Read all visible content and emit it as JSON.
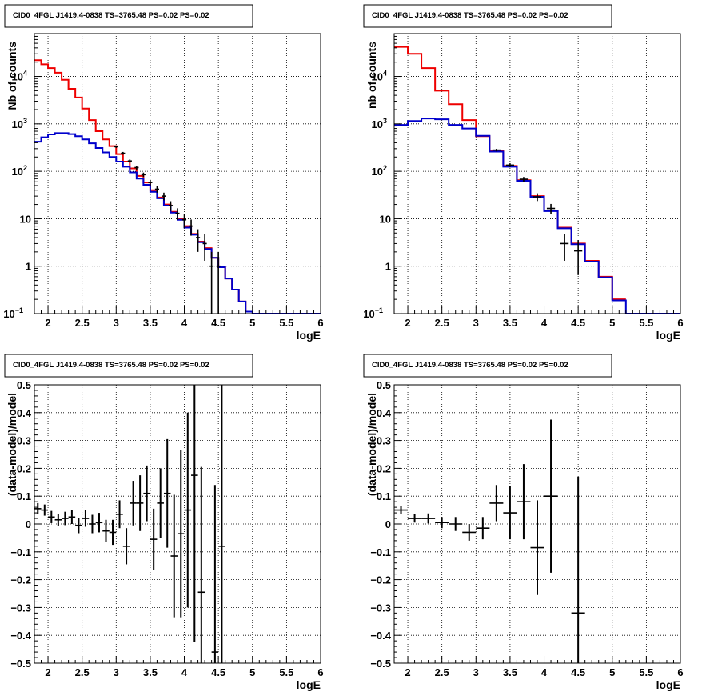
{
  "colors": {
    "model_total": "#ee0000",
    "model_source": "#0000cc",
    "data": "#000000",
    "grid": "#000000"
  },
  "chart_data": [
    {
      "type": "line",
      "title": "CID0_4FGL J1419.4-0838 TS=3765.48 PS=0.02 PS=0.02",
      "xlabel": "logE",
      "ylabel": "Nb of counts",
      "xlim": [
        1.8,
        6.0
      ],
      "ylim": [
        0.1,
        80000
      ],
      "yscale": "log",
      "grid": true,
      "x_ticks": [
        "2",
        "2.5",
        "3",
        "3.5",
        "4",
        "4.5",
        "5",
        "5.5",
        "6"
      ],
      "y_ticks": [
        "10^-1",
        "1",
        "10",
        "10^2",
        "10^3",
        "10^4"
      ],
      "bin_edges": [
        1.8,
        1.9,
        2.0,
        2.1,
        2.2,
        2.3,
        2.4,
        2.5,
        2.6,
        2.7,
        2.8,
        2.9,
        3.0,
        3.1,
        3.2,
        3.3,
        3.4,
        3.5,
        3.6,
        3.7,
        3.8,
        3.9,
        4.0,
        4.1,
        4.2,
        4.3,
        4.4,
        4.5,
        4.6,
        4.7,
        4.8,
        4.9,
        5.0,
        5.1,
        5.2,
        5.3,
        5.4,
        5.5,
        5.6,
        5.7,
        5.8,
        5.9,
        6.0
      ],
      "series": [
        {
          "role": "total",
          "values": [
            22000,
            18000,
            15000,
            12000,
            8500,
            5500,
            3600,
            2100,
            1200,
            700,
            470,
            340,
            230,
            160,
            115,
            80,
            58,
            40,
            28,
            20,
            14,
            10,
            7,
            4.8,
            3.3,
            2.4,
            1.5,
            0.95,
            0.55,
            0.32,
            0.18,
            0.11,
            null,
            null,
            null,
            null,
            null,
            null,
            null,
            null,
            null,
            null
          ]
        },
        {
          "role": "source",
          "values": [
            420,
            520,
            600,
            640,
            640,
            610,
            550,
            470,
            390,
            310,
            250,
            200,
            160,
            125,
            95,
            70,
            52,
            37,
            27,
            19,
            13.5,
            9.5,
            6.5,
            4.6,
            3.2,
            2.3,
            1.5,
            0.95,
            0.55,
            0.32,
            0.18,
            0.11,
            0.1,
            0.1,
            0.1,
            0.1,
            0.1,
            0.1,
            0.1,
            0.1,
            0.1,
            0.1
          ]
        }
      ],
      "data_points": [
        {
          "x": 3.0,
          "y": 330,
          "err": 18
        },
        {
          "x": 3.1,
          "y": 240,
          "err": 16
        },
        {
          "x": 3.2,
          "y": 165,
          "err": 13
        },
        {
          "x": 3.3,
          "y": 120,
          "err": 11
        },
        {
          "x": 3.4,
          "y": 85,
          "err": 9
        },
        {
          "x": 3.5,
          "y": 58,
          "err": 8
        },
        {
          "x": 3.6,
          "y": 42,
          "err": 6.5
        },
        {
          "x": 3.7,
          "y": 30,
          "err": 5.5
        },
        {
          "x": 3.8,
          "y": 19,
          "err": 4.4
        },
        {
          "x": 3.9,
          "y": 13,
          "err": 3.6
        },
        {
          "x": 4.0,
          "y": 9.5,
          "err": 3.1
        },
        {
          "x": 4.1,
          "y": 7,
          "err": 2.6
        },
        {
          "x": 4.2,
          "y": 4.0,
          "err": 2.0
        },
        {
          "x": 4.3,
          "y": 3.0,
          "err": 1.7
        },
        {
          "x": 4.4,
          "y": 1.0,
          "err": 1.0
        },
        {
          "x": 4.5,
          "y": 1.0,
          "err": 1.0
        }
      ]
    },
    {
      "type": "line",
      "title": "CID0_4FGL J1419.4-0838 TS=3765.48 PS=0.02 PS=0.02",
      "xlabel": "logE",
      "ylabel": "nb of counts",
      "xlim": [
        1.8,
        6.0
      ],
      "ylim": [
        0.1,
        80000
      ],
      "yscale": "log",
      "grid": true,
      "x_ticks": [
        "2",
        "2.5",
        "3",
        "3.5",
        "4",
        "4.5",
        "5",
        "5.5",
        "6"
      ],
      "y_ticks": [
        "10^-1",
        "1",
        "10",
        "10^2",
        "10^3",
        "10^4"
      ],
      "bin_edges": [
        1.8,
        2.0,
        2.2,
        2.4,
        2.6,
        2.8,
        3.0,
        3.2,
        3.4,
        3.6,
        3.8,
        4.0,
        4.2,
        4.4,
        4.6,
        4.8,
        5.0,
        5.2,
        5.4,
        5.6,
        5.8,
        6.0
      ],
      "series": [
        {
          "role": "total",
          "values": [
            42000,
            30000,
            15000,
            5000,
            2600,
            1200,
            550,
            270,
            130,
            65,
            30,
            15,
            6.5,
            3.0,
            1.3,
            0.6,
            0.2,
            null,
            null,
            null,
            null
          ]
        },
        {
          "role": "source",
          "values": [
            950,
            1150,
            1300,
            1250,
            950,
            800,
            560,
            260,
            125,
            63,
            29,
            14.5,
            6.3,
            2.9,
            1.25,
            0.58,
            0.19,
            0.1,
            0.1,
            0.1,
            0.1
          ]
        }
      ],
      "data_points": [
        {
          "x": 3.3,
          "y": 280,
          "err": 17
        },
        {
          "x": 3.5,
          "y": 135,
          "err": 12
        },
        {
          "x": 3.7,
          "y": 68,
          "err": 8
        },
        {
          "x": 3.9,
          "y": 29,
          "err": 5.4
        },
        {
          "x": 4.1,
          "y": 16.5,
          "err": 4
        },
        {
          "x": 4.3,
          "y": 3.0,
          "err": 1.7
        },
        {
          "x": 4.5,
          "y": 2.1,
          "err": 1.45
        }
      ]
    },
    {
      "type": "scatter",
      "title": "CID0_4FGL J1419.4-0838 TS=3765.48 PS=0.02 PS=0.02",
      "xlabel": "logE",
      "ylabel": "(data-model)/model",
      "xlim": [
        1.8,
        6.0
      ],
      "ylim": [
        -0.5,
        0.5
      ],
      "grid": true,
      "x_ticks": [
        "2",
        "2.5",
        "3",
        "3.5",
        "4",
        "4.5",
        "5",
        "5.5",
        "6"
      ],
      "y_ticks": [
        "-0.5",
        "-0.4",
        "-0.3",
        "-0.2",
        "-0.1",
        "0",
        "0.1",
        "0.2",
        "0.3",
        "0.4",
        "0.5"
      ],
      "points": [
        {
          "x": 1.85,
          "y": 0.055,
          "err": 0.02
        },
        {
          "x": 1.95,
          "y": 0.05,
          "err": 0.02
        },
        {
          "x": 2.05,
          "y": 0.025,
          "err": 0.022
        },
        {
          "x": 2.15,
          "y": 0.015,
          "err": 0.022
        },
        {
          "x": 2.25,
          "y": 0.02,
          "err": 0.024
        },
        {
          "x": 2.35,
          "y": 0.025,
          "err": 0.025
        },
        {
          "x": 2.45,
          "y": -0.005,
          "err": 0.028
        },
        {
          "x": 2.55,
          "y": 0.02,
          "err": 0.03
        },
        {
          "x": 2.65,
          "y": 0.0,
          "err": 0.033
        },
        {
          "x": 2.75,
          "y": 0.005,
          "err": 0.035
        },
        {
          "x": 2.85,
          "y": -0.025,
          "err": 0.04
        },
        {
          "x": 2.95,
          "y": -0.03,
          "err": 0.045
        },
        {
          "x": 3.05,
          "y": 0.035,
          "err": 0.05
        },
        {
          "x": 3.15,
          "y": -0.08,
          "err": 0.065
        },
        {
          "x": 3.25,
          "y": 0.075,
          "err": 0.08
        },
        {
          "x": 3.35,
          "y": 0.075,
          "err": 0.1
        },
        {
          "x": 3.45,
          "y": 0.11,
          "err": 0.1
        },
        {
          "x": 3.55,
          "y": -0.055,
          "err": 0.11
        },
        {
          "x": 3.65,
          "y": 0.075,
          "err": 0.125
        },
        {
          "x": 3.75,
          "y": 0.11,
          "err": 0.195
        },
        {
          "x": 3.85,
          "y": -0.115,
          "err": 0.22
        },
        {
          "x": 3.95,
          "y": -0.035,
          "err": 0.3
        },
        {
          "x": 4.05,
          "y": 0.05,
          "err": 0.35
        },
        {
          "x": 4.15,
          "y": 0.175,
          "err": 0.6
        },
        {
          "x": 4.25,
          "y": -0.245,
          "err": 0.45
        },
        {
          "x": 4.45,
          "y": -0.46,
          "err": 0.6
        },
        {
          "x": 4.55,
          "y": -0.08,
          "err": 0.6
        }
      ]
    },
    {
      "type": "scatter",
      "title": "CID0_4FGL J1419.4-0838 TS=3765.48 PS=0.02 PS=0.02",
      "xlabel": "logE",
      "ylabel": "(data-model)/model",
      "xlim": [
        1.8,
        6.0
      ],
      "ylim": [
        -0.5,
        0.5
      ],
      "grid": true,
      "x_ticks": [
        "2",
        "2.5",
        "3",
        "3.5",
        "4",
        "4.5",
        "5",
        "5.5",
        "6"
      ],
      "y_ticks": [
        "-0.5",
        "-0.4",
        "-0.3",
        "-0.2",
        "-0.1",
        "0",
        "0.1",
        "0.2",
        "0.3",
        "0.4",
        "0.5"
      ],
      "points": [
        {
          "x": 1.9,
          "y": 0.05,
          "err": 0.015
        },
        {
          "x": 2.1,
          "y": 0.02,
          "err": 0.015
        },
        {
          "x": 2.3,
          "y": 0.02,
          "err": 0.018
        },
        {
          "x": 2.5,
          "y": 0.005,
          "err": 0.02
        },
        {
          "x": 2.7,
          "y": 0.0,
          "err": 0.025
        },
        {
          "x": 2.9,
          "y": -0.03,
          "err": 0.03
        },
        {
          "x": 3.1,
          "y": -0.015,
          "err": 0.04
        },
        {
          "x": 3.3,
          "y": 0.075,
          "err": 0.065
        },
        {
          "x": 3.5,
          "y": 0.04,
          "err": 0.095
        },
        {
          "x": 3.7,
          "y": 0.08,
          "err": 0.135
        },
        {
          "x": 3.9,
          "y": -0.085,
          "err": 0.17
        },
        {
          "x": 4.1,
          "y": 0.1,
          "err": 0.275
        },
        {
          "x": 4.5,
          "y": -0.32,
          "err": 0.49
        }
      ]
    }
  ]
}
